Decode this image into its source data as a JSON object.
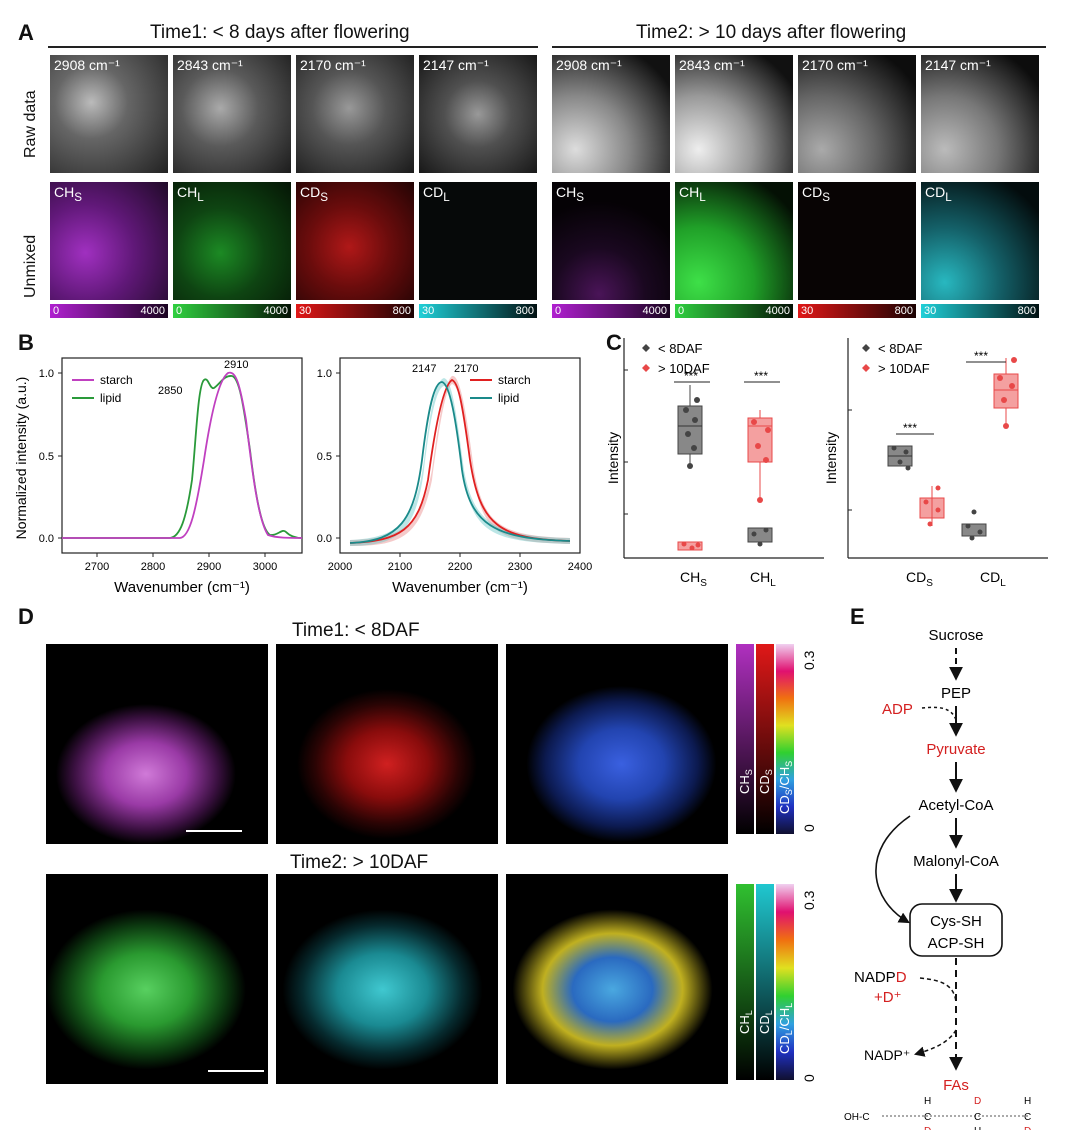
{
  "panelA": {
    "letter": "A",
    "time1_header": "Time1: < 8 days after flowering",
    "time2_header": "Time2: > 10 days after flowering",
    "row_raw": "Raw data",
    "row_unmixed": "Unmixed",
    "raw_labels": [
      "2908 cm⁻¹",
      "2843 cm⁻¹",
      "2170 cm⁻¹",
      "2147 cm⁻¹"
    ],
    "unmixed_labels": [
      "CH",
      "CH",
      "CD",
      "CD"
    ],
    "unmixed_subs": [
      "S",
      "L",
      "S",
      "L"
    ],
    "colorbars": [
      {
        "lo": "0",
        "hi": "4000",
        "color": "#b020d0"
      },
      {
        "lo": "0",
        "hi": "4000",
        "color": "#20c030"
      },
      {
        "lo": "30",
        "hi": "800",
        "color": "#e01818"
      },
      {
        "lo": "30",
        "hi": "800",
        "color": "#20d0d8"
      }
    ]
  },
  "panelB": {
    "letter": "B",
    "left": {
      "ylabel": "Normalized intensity (a.u.)",
      "xlabel": "Wavenumber (cm⁻¹)",
      "xticks": [
        "2700",
        "2800",
        "2900",
        "3000"
      ],
      "yticks": [
        "0.0",
        "0.5",
        "1.0"
      ],
      "legend": [
        "starch",
        "lipid"
      ],
      "annotations": [
        "2850",
        "2910"
      ]
    },
    "right": {
      "xlabel": "Wavenumber (cm⁻¹)",
      "xticks": [
        "2000",
        "2100",
        "2200",
        "2300",
        "2400"
      ],
      "yticks": [
        "0.0",
        "0.5",
        "1.0"
      ],
      "legend": [
        "starch",
        "lipid"
      ],
      "annotations": [
        "2147",
        "2170"
      ]
    }
  },
  "panelC": {
    "letter": "C",
    "ylabel": "Intensity",
    "legend": [
      "< 8DAF",
      "> 10DAF"
    ],
    "sig": "***",
    "left_cats": [
      "CH",
      "CH"
    ],
    "left_subs": [
      "S",
      "L"
    ],
    "right_cats": [
      "CD",
      "CD"
    ],
    "right_subs": [
      "S",
      "L"
    ]
  },
  "panelD": {
    "letter": "D",
    "time1": "Time1: < 8DAF",
    "time2": "Time2: > 10DAF",
    "scale_top": "0.3",
    "scale_bottom": "0",
    "bar1_labels": [
      "CH",
      "CD",
      "CD"
    ],
    "bar1_subs": [
      "S",
      "S",
      "S"
    ],
    "bar1_ratio_rest": "/CH",
    "bar2_labels": [
      "CH",
      "CD",
      "CD"
    ],
    "bar2_subs": [
      "L",
      "L",
      "L"
    ],
    "bar2_ratio_rest": "/CH"
  },
  "panelE": {
    "letter": "E",
    "nodes": [
      "Sucrose",
      "PEP",
      "Pyruvate",
      "Acetyl-CoA",
      "Malonyl-CoA",
      "Cys-SH",
      "ACP-SH",
      "FAs"
    ],
    "adp": "ADP",
    "nadpd_a": "NADP",
    "nadpd_b": "D",
    "plus_d": "+D⁺",
    "nadp_plus": "NADP⁺",
    "chain": {
      "start": "OH-C",
      "o": "O",
      "h": "H",
      "c": "C",
      "d": "D"
    }
  },
  "colors": {
    "red": "#d42020",
    "green": "#2a9a3a",
    "purple": "#c040c0",
    "teal": "#1a8a8a",
    "gray": "#555555"
  }
}
